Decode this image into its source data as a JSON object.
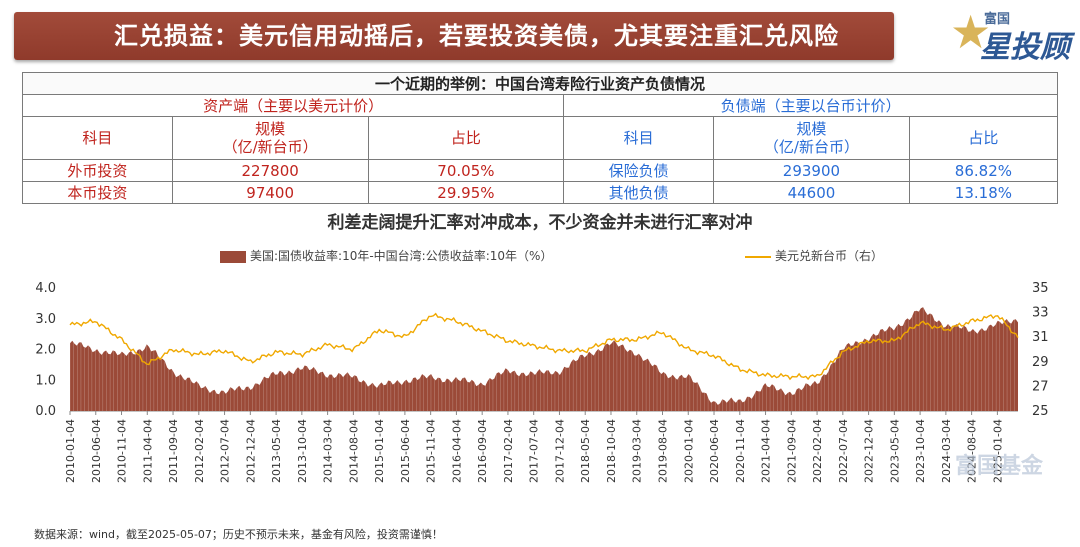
{
  "banner": {
    "title": "汇兑损益：美元信用动摇后，若要投资美债，尤其要注重汇兑风险"
  },
  "logo": {
    "top": "富国",
    "main": "星投顾"
  },
  "table": {
    "title": "一个近期的举例：中国台湾寿险行业资产负债情况",
    "left_header": "资产端（主要以美元计价）",
    "right_header": "负债端（主要以台币计价）",
    "columns_left": [
      "科目",
      "规模\n（亿/新台币）",
      "占比"
    ],
    "columns_right": [
      "科目",
      "规模\n（亿/新台币）",
      "占比"
    ],
    "rows_left": [
      [
        "外币投资",
        "227800",
        "70.05%"
      ],
      [
        "本币投资",
        "97400",
        "29.95%"
      ]
    ],
    "rows_right": [
      [
        "保险负债",
        "293900",
        "86.82%"
      ],
      [
        "其他负债",
        "44600",
        "13.18%"
      ]
    ]
  },
  "chart_data": {
    "type": "area",
    "title": "利差走阔提升汇率对冲成本，不少资金并未进行汇率对冲",
    "legend_position": "top",
    "series": [
      {
        "name": "美国:国债收益率:10年-中国台湾:公债收益率:10年（%）",
        "axis": "left",
        "type": "area",
        "color": "#9b4a38",
        "x": [
          "2010-01",
          "2010-06",
          "2010-11",
          "2011-04",
          "2011-09",
          "2012-02",
          "2012-07",
          "2012-12",
          "2013-05",
          "2013-10",
          "2014-03",
          "2014-08",
          "2015-01",
          "2015-06",
          "2015-11",
          "2016-04",
          "2016-09",
          "2017-02",
          "2017-07",
          "2017-12",
          "2018-05",
          "2018-10",
          "2019-03",
          "2019-08",
          "2020-01",
          "2020-06",
          "2020-11",
          "2021-04",
          "2021-09",
          "2022-02",
          "2022-07",
          "2022-12",
          "2023-05",
          "2023-10",
          "2024-03",
          "2024-08",
          "2025-01",
          "2025-05"
        ],
        "values": [
          2.2,
          2.0,
          1.8,
          2.1,
          1.3,
          0.8,
          0.6,
          0.8,
          1.2,
          1.4,
          1.2,
          1.1,
          0.8,
          1.0,
          1.1,
          1.0,
          0.9,
          1.3,
          1.2,
          1.3,
          1.8,
          2.2,
          1.9,
          1.2,
          1.1,
          0.3,
          0.3,
          0.8,
          0.6,
          0.9,
          2.0,
          2.4,
          2.7,
          3.3,
          2.8,
          2.6,
          2.8,
          3.0
        ]
      },
      {
        "name": "美元兑新台币（右）",
        "axis": "right",
        "type": "line",
        "color": "#f0a800",
        "x": [
          "2010-01",
          "2010-06",
          "2010-11",
          "2011-04",
          "2011-09",
          "2012-02",
          "2012-07",
          "2012-12",
          "2013-05",
          "2013-10",
          "2014-03",
          "2014-08",
          "2015-01",
          "2015-06",
          "2015-11",
          "2016-04",
          "2016-09",
          "2017-02",
          "2017-07",
          "2017-12",
          "2018-05",
          "2018-10",
          "2019-03",
          "2019-08",
          "2020-01",
          "2020-06",
          "2020-11",
          "2021-04",
          "2021-09",
          "2022-02",
          "2022-07",
          "2022-12",
          "2023-05",
          "2023-10",
          "2024-03",
          "2024-08",
          "2025-01",
          "2025-05"
        ],
        "values": [
          32.0,
          32.3,
          30.8,
          28.8,
          30.0,
          29.6,
          29.9,
          29.0,
          29.8,
          29.6,
          30.4,
          30.0,
          31.6,
          31.0,
          32.8,
          32.3,
          31.5,
          30.7,
          30.3,
          29.9,
          29.9,
          30.8,
          30.8,
          31.4,
          30.0,
          29.5,
          28.4,
          27.9,
          27.8,
          27.8,
          29.8,
          30.7,
          30.7,
          32.2,
          31.6,
          32.3,
          32.8,
          31.0
        ]
      }
    ],
    "ylim_left": [
      0,
      4.0
    ],
    "yticks_left": [
      "0.0",
      "1.0",
      "2.0",
      "3.0",
      "4.0"
    ],
    "ylim_right": [
      25,
      35
    ],
    "yticks_right": [
      "25",
      "27",
      "29",
      "31",
      "33",
      "35"
    ],
    "x_tick_labels": [
      "2010-01-04",
      "2010-06-04",
      "2010-11-04",
      "2011-04-04",
      "2011-09-04",
      "2012-02-04",
      "2012-07-04",
      "2012-12-04",
      "2013-05-04",
      "2013-10-04",
      "2014-03-04",
      "2014-08-04",
      "2015-01-04",
      "2015-06-04",
      "2015-11-04",
      "2016-04-04",
      "2016-09-04",
      "2017-02-04",
      "2017-07-04",
      "2017-12-04",
      "2018-05-04",
      "2018-10-04",
      "2019-03-04",
      "2019-08-04",
      "2020-01-04",
      "2020-06-04",
      "2020-11-04",
      "2021-04-04",
      "2021-09-04",
      "2022-02-04",
      "2022-07-04",
      "2022-12-04",
      "2023-05-04",
      "2023-10-04",
      "2024-03-04",
      "2024-08-04",
      "2025-01-04"
    ],
    "grid": false
  },
  "footnote": "数据来源：wind，截至2025-05-07；历史不预示未来，基金有风险，投资需谨慎！",
  "watermark": "富国基金"
}
